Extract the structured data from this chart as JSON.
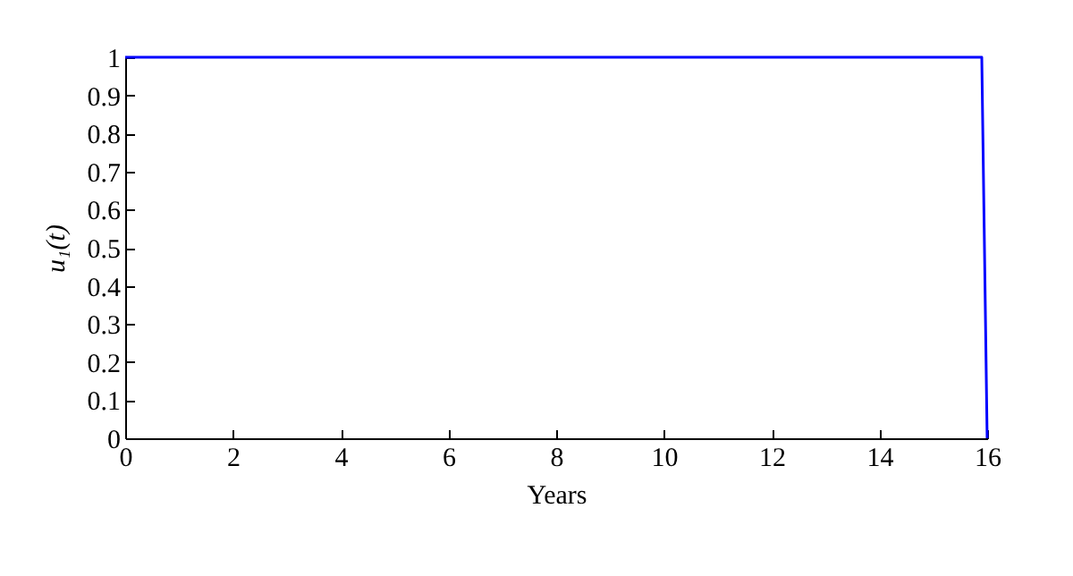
{
  "chart_data": {
    "type": "line",
    "xlabel": "Years",
    "ylabel": "u₁(t)",
    "x": [
      0,
      15.9,
      16
    ],
    "series": [
      {
        "color": "#0000ff",
        "values": [
          1,
          1,
          0
        ]
      }
    ],
    "xlim": [
      0,
      16
    ],
    "xticks": [
      0,
      2,
      4,
      6,
      8,
      10,
      12,
      14,
      16
    ],
    "ylim": [
      0,
      1
    ],
    "yticks": [
      0,
      0.1,
      0.2,
      0.3,
      0.4,
      0.5,
      0.6,
      0.7,
      0.8,
      0.9,
      1
    ],
    "grid": false,
    "legend": false,
    "marker": "none",
    "line_style": "solid"
  }
}
